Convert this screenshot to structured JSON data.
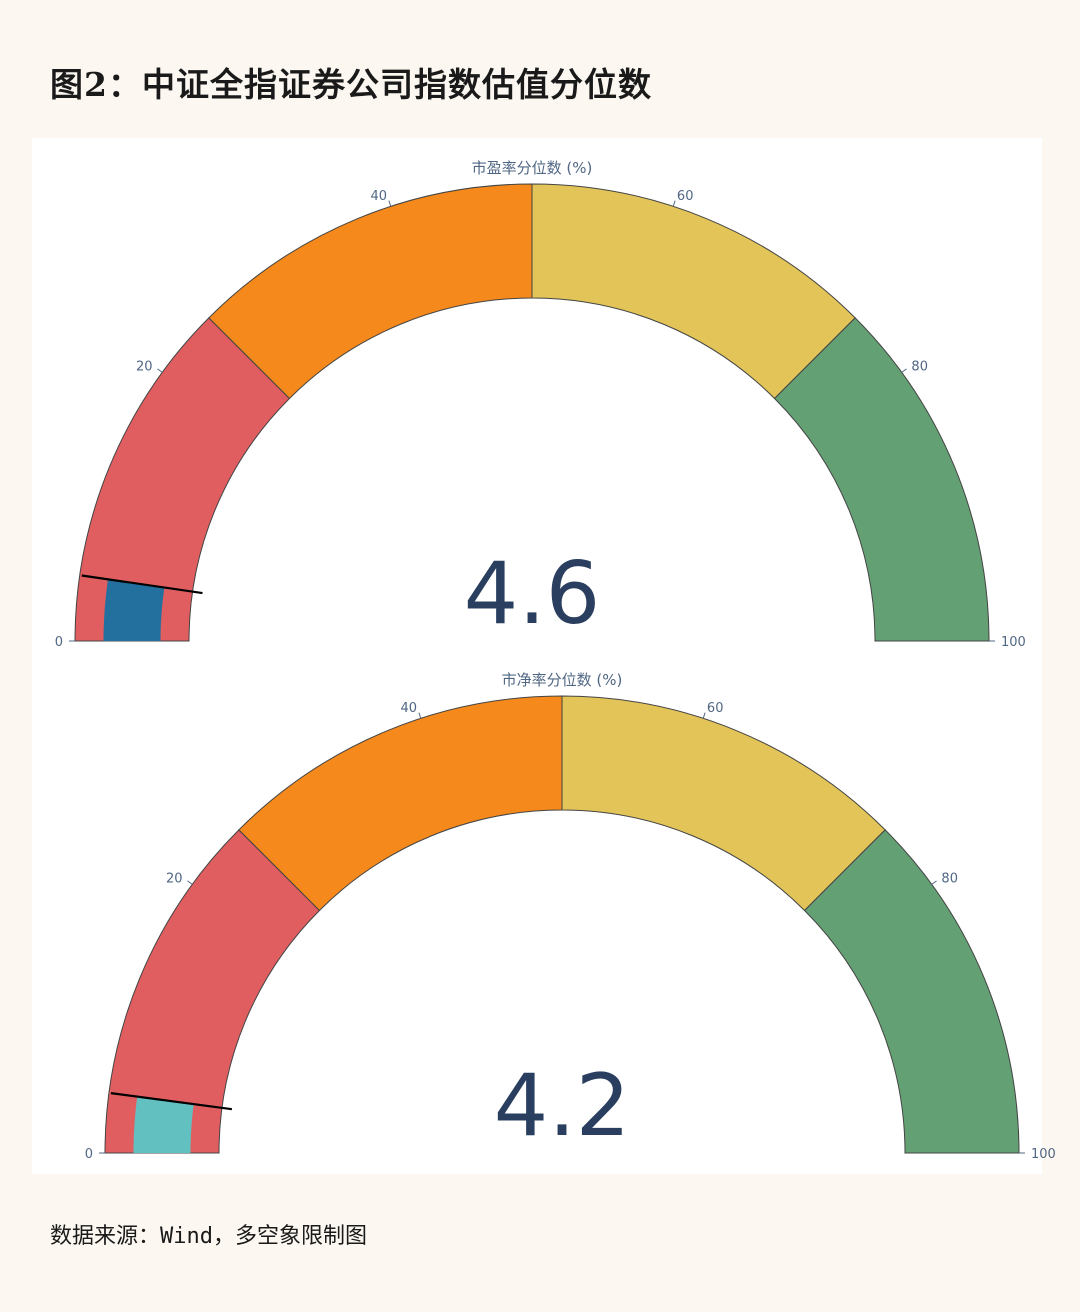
{
  "page": {
    "title": "图2：中证全指证券公司指数估值分位数",
    "source": "数据来源：Wind，多空象限制图"
  },
  "chart_data": [
    {
      "type": "gauge",
      "title": "市盈率分位数 (%)",
      "value": 4.6,
      "value_label": "4.6",
      "range": [
        0,
        100
      ],
      "ticks": [
        "0",
        "20",
        "40",
        "60",
        "80",
        "100"
      ],
      "bar_color": "#23709f",
      "steps": [
        {
          "range": [
            0,
            25
          ],
          "color": "#e05e60"
        },
        {
          "range": [
            25,
            50
          ],
          "color": "#f5891b"
        },
        {
          "range": [
            50,
            75
          ],
          "color": "#e2c458"
        },
        {
          "range": [
            75,
            100
          ],
          "color": "#63a073"
        }
      ],
      "threshold": 4.6
    },
    {
      "type": "gauge",
      "title": "市净率分位数 (%)",
      "value": 4.2,
      "value_label": "4.2",
      "range": [
        0,
        100
      ],
      "ticks": [
        "0",
        "20",
        "40",
        "60",
        "80",
        "100"
      ],
      "bar_color": "#62c0c1",
      "steps": [
        {
          "range": [
            0,
            25
          ],
          "color": "#e05e60"
        },
        {
          "range": [
            25,
            50
          ],
          "color": "#f5891b"
        },
        {
          "range": [
            50,
            75
          ],
          "color": "#e2c458"
        },
        {
          "range": [
            75,
            100
          ],
          "color": "#63a073"
        }
      ],
      "threshold": 4.2
    }
  ]
}
